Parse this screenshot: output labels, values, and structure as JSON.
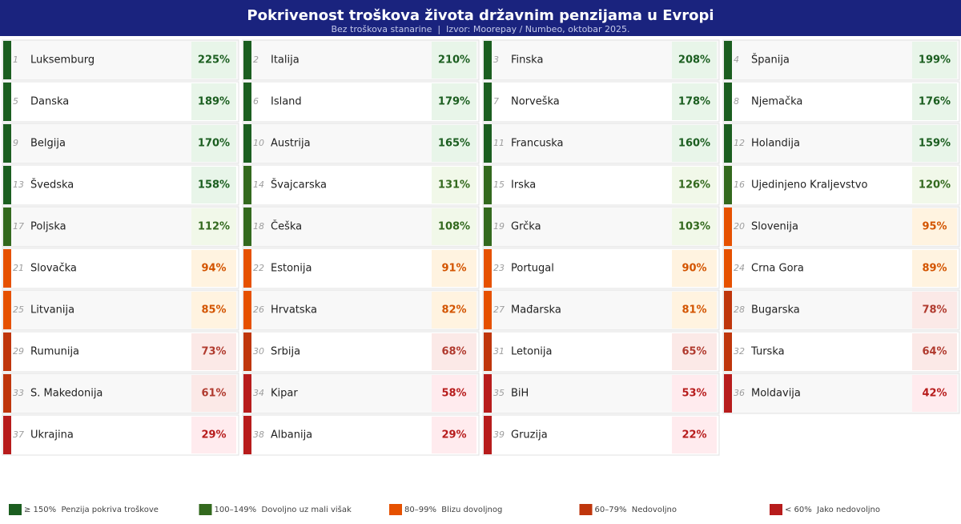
{
  "header": {
    "title": "Pokrivenost troškova života državnim penzijama u Evropi",
    "subtitle": "Bez troškova stanarine  |  Izvor: Moorepay / Numbeo, oktobar 2025."
  },
  "legend": [
    {
      "label": "≥ 150%  Penzija pokriva troškove",
      "color": "#1b5e20",
      "bg": "#e8f5e9",
      "text": "#1b5e20"
    },
    {
      "label": "100–149%  Dovoljno uz mali višak",
      "color": "#33691e",
      "bg": "#f1f8e9",
      "text": "#33691e"
    },
    {
      "label": "80–99%  Blizu dovoljnog",
      "color": "#e65100",
      "bg": "#fff3e0",
      "text": "#d35400"
    },
    {
      "label": "60–79%  Nedovoljno",
      "color": "#bf360c",
      "bg": "#fbe9e7",
      "text": "#b03a2e"
    },
    {
      "label": "< 60%  Jako nedovoljno",
      "color": "#b71c1c",
      "bg": "#ffebee",
      "text": "#b71c1c"
    }
  ],
  "cards": [
    {
      "rank": 1,
      "name": "Luksemburg",
      "value": "225%",
      "color": "#1b5e20"
    },
    {
      "rank": 2,
      "name": "Italija",
      "value": "210%",
      "color": "#1b5e20"
    },
    {
      "rank": 3,
      "name": "Finska",
      "value": "208%",
      "color": "#1b5e20"
    },
    {
      "rank": 4,
      "name": "Španija",
      "value": "199%",
      "color": "#1b5e20"
    },
    {
      "rank": 5,
      "name": "Danska",
      "value": "189%",
      "color": "#1b5e20"
    },
    {
      "rank": 6,
      "name": "Island",
      "value": "179%",
      "color": "#1b5e20"
    },
    {
      "rank": 7,
      "name": "Norveška",
      "value": "178%",
      "color": "#1b5e20"
    },
    {
      "rank": 8,
      "name": "Njemačka",
      "value": "176%",
      "color": "#1b5e20"
    },
    {
      "rank": 9,
      "name": "Belgija",
      "value": "170%",
      "color": "#1b5e20"
    },
    {
      "rank": 10,
      "name": "Austrija",
      "value": "165%",
      "color": "#1b5e20"
    },
    {
      "rank": 11,
      "name": "Francuska",
      "value": "160%",
      "color": "#1b5e20"
    },
    {
      "rank": 12,
      "name": "Holandija",
      "value": "159%",
      "color": "#1b5e20"
    },
    {
      "rank": 13,
      "name": "Švedska",
      "value": "158%",
      "color": "#1b5e20"
    },
    {
      "rank": 14,
      "name": "Švajcarska",
      "value": "131%",
      "color": "#33691e"
    },
    {
      "rank": 15,
      "name": "Irska",
      "value": "126%",
      "color": "#33691e"
    },
    {
      "rank": 16,
      "name": "Ujedinjeno Kraljevstvo",
      "value": "120%",
      "color": "#33691e"
    },
    {
      "rank": 17,
      "name": "Poljska",
      "value": "112%",
      "color": "#33691e"
    },
    {
      "rank": 18,
      "name": "Češka",
      "value": "108%",
      "color": "#33691e"
    },
    {
      "rank": 19,
      "name": "Grčka",
      "value": "103%",
      "color": "#33691e"
    },
    {
      "rank": 20,
      "name": "Slovenija",
      "value": "95%",
      "color": "#e65100"
    },
    {
      "rank": 21,
      "name": "Slovačka",
      "value": "94%",
      "color": "#e65100"
    },
    {
      "rank": 22,
      "name": "Estonija",
      "value": "91%",
      "color": "#e65100"
    },
    {
      "rank": 23,
      "name": "Portugal",
      "value": "90%",
      "color": "#e65100"
    },
    {
      "rank": 24,
      "name": "Crna Gora",
      "value": "89%",
      "color": "#e65100"
    },
    {
      "rank": 25,
      "name": "Litvanija",
      "value": "85%",
      "color": "#e65100"
    },
    {
      "rank": 26,
      "name": "Hrvatska",
      "value": "82%",
      "color": "#e65100"
    },
    {
      "rank": 27,
      "name": "Mađarska",
      "value": "81%",
      "color": "#e65100"
    },
    {
      "rank": 28,
      "name": "Bugarska",
      "value": "78%",
      "color": "#bf360c"
    },
    {
      "rank": 29,
      "name": "Rumunija",
      "value": "73%",
      "color": "#bf360c"
    },
    {
      "rank": 30,
      "name": "Srbija",
      "value": "68%",
      "color": "#bf360c"
    },
    {
      "rank": 31,
      "name": "Letonija",
      "value": "65%",
      "color": "#bf360c"
    },
    {
      "rank": 32,
      "name": "Turska",
      "value": "64%",
      "color": "#bf360c"
    },
    {
      "rank": 33,
      "name": "S. Makedonija",
      "value": "61%",
      "color": "#bf360c"
    },
    {
      "rank": 34,
      "name": "Kipar",
      "value": "58%",
      "color": "#b71c1c"
    },
    {
      "rank": 35,
      "name": "BiH",
      "value": "53%",
      "color": "#b71c1c"
    },
    {
      "rank": 36,
      "name": "Moldavija",
      "value": "42%",
      "color": "#b71c1c"
    },
    {
      "rank": 37,
      "name": "Ukrajina",
      "value": "29%",
      "color": "#b71c1c"
    },
    {
      "rank": 38,
      "name": "Albanija",
      "value": "29%",
      "color": "#b71c1c"
    },
    {
      "rank": 39,
      "name": "Gruzija",
      "value": "22%",
      "color": "#b71c1c"
    }
  ]
}
